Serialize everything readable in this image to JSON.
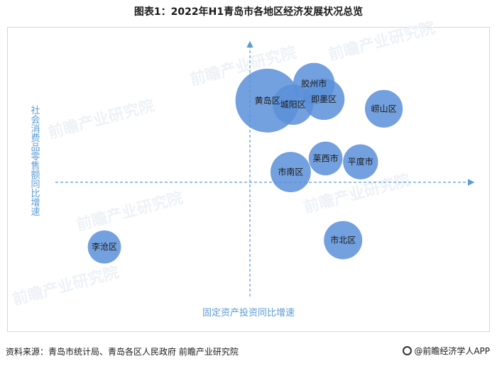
{
  "title": "图表1：2022年H1青岛市各地区经济发展状况总览",
  "footer": {
    "source": "资料来源：青岛市统计局、青岛各区人民政府 前瞻产业研究院",
    "brand": "@前瞻经济学人APP"
  },
  "watermark": "前瞻产业研究院",
  "colors": {
    "bubble": "#5b8fd8",
    "axis": "#5b9bd5"
  },
  "chart_data": {
    "type": "scatter",
    "title": "",
    "xlabel": "固定资产投资同比增速",
    "ylabel": "社会消费品零售额同比增速",
    "points": [
      {
        "name": "黄岛区",
        "x": 0.3,
        "y": 1.2,
        "size": 1.0
      },
      {
        "name": "胶州市",
        "x": 1.1,
        "y": 1.45,
        "size": 0.42
      },
      {
        "name": "即墨区",
        "x": 1.27,
        "y": 1.22,
        "size": 0.42
      },
      {
        "name": "城阳区",
        "x": 0.74,
        "y": 1.14,
        "size": 0.4
      },
      {
        "name": "崂山区",
        "x": 2.3,
        "y": 1.08,
        "size": 0.35
      },
      {
        "name": "莱西市",
        "x": 1.3,
        "y": 0.35,
        "size": 0.28
      },
      {
        "name": "平度市",
        "x": 1.9,
        "y": 0.3,
        "size": 0.3
      },
      {
        "name": "市南区",
        "x": 0.7,
        "y": 0.15,
        "size": 0.4
      },
      {
        "name": "市北区",
        "x": 1.6,
        "y": -0.85,
        "size": 0.36
      },
      {
        "name": "李沧区",
        "x": -2.5,
        "y": -0.95,
        "size": 0.27
      }
    ]
  }
}
